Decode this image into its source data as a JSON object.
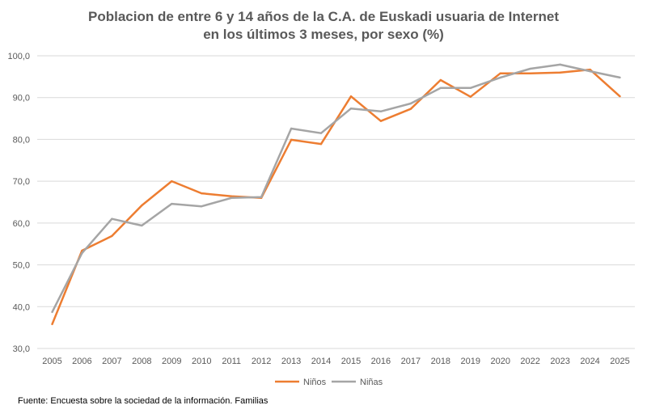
{
  "chart_data": {
    "type": "line",
    "title_line1": "Poblacion de entre 6 y 14 años de la C.A. de Euskadi usuaria de Internet",
    "title_line2": "en los últimos 3 meses, por sexo (%)",
    "categories": [
      "2005",
      "2006",
      "2007",
      "2008",
      "2009",
      "2010",
      "2011",
      "2012",
      "2013",
      "2014",
      "2015",
      "2016",
      "2017",
      "2018",
      "2019",
      "2020",
      "2022",
      "2023",
      "2024",
      "2025"
    ],
    "ylim": [
      30,
      100
    ],
    "yticks": [
      "30,0",
      "40,0",
      "50,0",
      "60,0",
      "70,0",
      "80,0",
      "90,0",
      "100,0"
    ],
    "grid": true,
    "legend_position": "bottom",
    "series": [
      {
        "name": "Niños",
        "color": "#ED7D31",
        "values": [
          35.8,
          53.4,
          56.9,
          64.2,
          70.0,
          67.1,
          66.4,
          66.0,
          79.9,
          78.9,
          90.3,
          84.4,
          87.3,
          94.2,
          90.2,
          95.8,
          95.8,
          96.0,
          96.7,
          90.3
        ]
      },
      {
        "name": "Niñas",
        "color": "#A5A5A5",
        "values": [
          38.7,
          52.8,
          61.0,
          59.4,
          64.6,
          64.0,
          66.0,
          66.2,
          82.6,
          81.5,
          87.4,
          86.7,
          88.6,
          92.3,
          92.3,
          94.8,
          96.9,
          97.9,
          96.3,
          94.8
        ]
      }
    ],
    "source": "Fuente: Encuesta sobre la sociedad de la información. Familias"
  }
}
